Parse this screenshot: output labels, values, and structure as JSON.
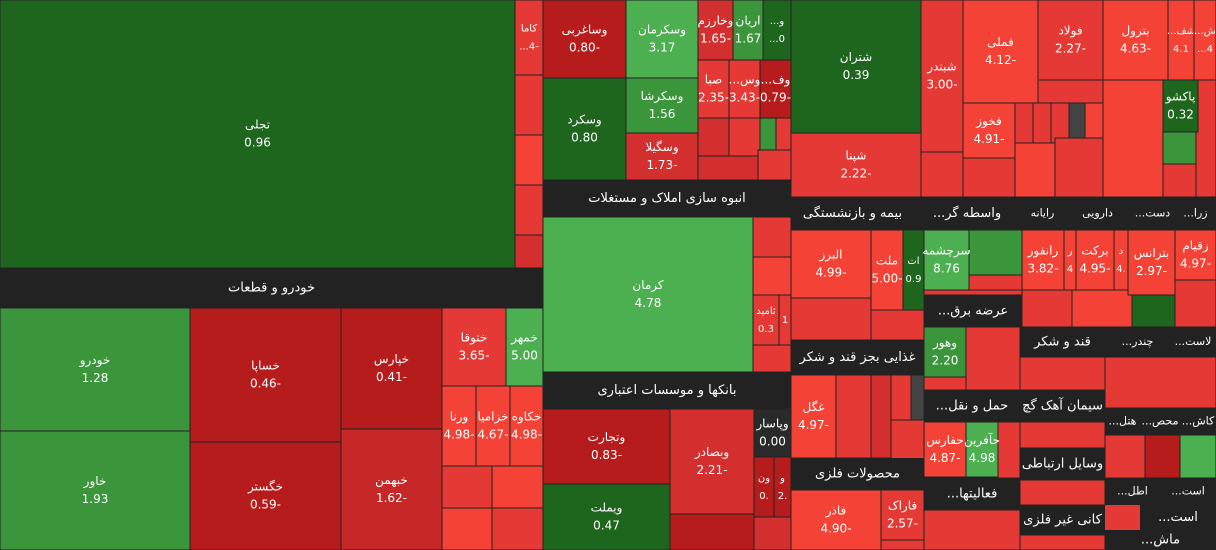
{
  "sectors": [
    {
      "name": "خودرو و قطعات"
    },
    {
      "name": "انبوه سازی املاک و مستغلات"
    },
    {
      "name": "بانکها و موسسات اعتباری"
    },
    {
      "name": "بیمه و بازنشستگی"
    },
    {
      "name": "واسطه گر..."
    },
    {
      "name": "رایانه"
    },
    {
      "name": "دارویی"
    },
    {
      "name": "دست..."
    },
    {
      "name": "زرا..."
    },
    {
      "name": "عرضه برق..."
    },
    {
      "name": "غذایی بجز قند و شکر"
    },
    {
      "name": "قند و شکر"
    },
    {
      "name": "چندر..."
    },
    {
      "name": "لاست..."
    },
    {
      "name": "حمل و نقل..."
    },
    {
      "name": "سیمان آهک گچ"
    },
    {
      "name": "کاش..."
    },
    {
      "name": "محص..."
    },
    {
      "name": "هتل..."
    },
    {
      "name": "محصولات فلزی"
    },
    {
      "name": "فعالیتها..."
    },
    {
      "name": "وسایل ارتباطی"
    },
    {
      "name": "اطل..."
    },
    {
      "name": "است..."
    },
    {
      "name": "کانی غیر فلزی"
    },
    {
      "name": "است..."
    },
    {
      "name": "ماش..."
    }
  ],
  "tiles": [
    {
      "symbol": "تجلی",
      "change": "0.96",
      "color": "#1e651e"
    },
    {
      "symbol": "کاما",
      "change": "-4...",
      "color": "#e53935"
    },
    {
      "symbol": "خودرو",
      "change": "1.28",
      "color": "#3b963b"
    },
    {
      "symbol": "خاور",
      "change": "1.93",
      "color": "#3b963b"
    },
    {
      "symbol": "خساپا",
      "change": "-0.46",
      "color": "#b71c1c"
    },
    {
      "symbol": "خگستر",
      "change": "-0.59",
      "color": "#b71c1c"
    },
    {
      "symbol": "خپارس",
      "change": "-0.41",
      "color": "#b71c1c"
    },
    {
      "symbol": "خبهمن",
      "change": "-1.62",
      "color": "#c62828"
    },
    {
      "symbol": "ختوقا",
      "change": "-3.65",
      "color": "#e53935"
    },
    {
      "symbol": "خمهر",
      "change": "5.00",
      "color": "#4caf50"
    },
    {
      "symbol": "ورنا",
      "change": "-4.98",
      "color": "#f44336"
    },
    {
      "symbol": "خزامیا",
      "change": "-4.67",
      "color": "#f44336"
    },
    {
      "symbol": "خکاوه",
      "change": "-4.98",
      "color": "#f44336"
    },
    {
      "symbol": "وساغربی",
      "change": "-0.80",
      "color": "#b71c1c"
    },
    {
      "symbol": "وسکرمان",
      "change": "3.17",
      "color": "#4caf50"
    },
    {
      "symbol": "وخارزم",
      "change": "-1.65",
      "color": "#d32f2f"
    },
    {
      "symbol": "اریان",
      "change": "1.67",
      "color": "#3b963b"
    },
    {
      "symbol": "و...",
      "change": "0...",
      "color": "#1e651e"
    },
    {
      "symbol": "وسکرد",
      "change": "0.80",
      "color": "#1e651e"
    },
    {
      "symbol": "وسکرشا",
      "change": "1.56",
      "color": "#3b963b"
    },
    {
      "symbol": "وسگیلا",
      "change": "-1.73",
      "color": "#d32f2f"
    },
    {
      "symbol": "صبا",
      "change": "-2.35",
      "color": "#e53935"
    },
    {
      "symbol": "وس...",
      "change": "-3.43",
      "color": "#e53935"
    },
    {
      "symbol": "وف...",
      "change": "-0.79",
      "color": "#b71c1c"
    },
    {
      "symbol": "شتران",
      "change": "0.39",
      "color": "#1e651e"
    },
    {
      "symbol": "شپنا",
      "change": "-2.22",
      "color": "#e53935"
    },
    {
      "symbol": "شبندر",
      "change": "-3.00",
      "color": "#e53935"
    },
    {
      "symbol": "فملی",
      "change": "-4.12",
      "color": "#f44336"
    },
    {
      "symbol": "فولاد",
      "change": "-2.27",
      "color": "#e53935"
    },
    {
      "symbol": "بترول",
      "change": "-4.63",
      "color": "#f44336"
    },
    {
      "symbol": "شف...",
      "change": "4.1",
      "color": "#f44336"
    },
    {
      "symbol": "ش...",
      "change": "4...",
      "color": "#f44336"
    },
    {
      "symbol": "پاکشو",
      "change": "0.32",
      "color": "#1e651e"
    },
    {
      "symbol": "فخوز",
      "change": "-4.91",
      "color": "#f44336"
    },
    {
      "symbol": "کرمان",
      "change": "4.78",
      "color": "#4caf50"
    },
    {
      "symbol": "ثامید",
      "change": "0.3",
      "color": "#e53935"
    },
    {
      "change": "1",
      "color": "#e53935"
    },
    {
      "symbol": "وتجارت",
      "change": "-0.83",
      "color": "#b71c1c"
    },
    {
      "symbol": "وبصادر",
      "change": "-2.21",
      "color": "#d32f2f"
    },
    {
      "symbol": "ویملت",
      "change": "0.47",
      "color": "#1e651e"
    },
    {
      "symbol": "وپاسار",
      "change": "0.00",
      "color": "#2a2a2a"
    },
    {
      "symbol": "ون",
      "change": ".0",
      "color": "#b71c1c"
    },
    {
      "symbol": "و",
      "change": ".2",
      "color": "#b71c1c"
    },
    {
      "symbol": "البرز",
      "change": "-4.99",
      "color": "#f44336"
    },
    {
      "symbol": "ملت",
      "change": "-5.00",
      "color": "#f44336"
    },
    {
      "symbol": "ات",
      "change": "0.9",
      "color": "#1e651e"
    },
    {
      "symbol": "سرچشمه",
      "change": "8.76",
      "color": "#4caf50"
    },
    {
      "symbol": "رانفور",
      "change": "-3.82",
      "color": "#f44336"
    },
    {
      "symbol": "ر",
      "change": "4",
      "color": "#f44336"
    },
    {
      "symbol": "برکت",
      "change": "-4.95",
      "color": "#f44336"
    },
    {
      "symbol": "د",
      "change": ".4",
      "color": "#f44336"
    },
    {
      "symbol": "بترانس",
      "change": "-2.97",
      "color": "#f44336"
    },
    {
      "symbol": "زقیام",
      "change": "-4.97",
      "color": "#f44336"
    },
    {
      "symbol": "غگل",
      "change": "-4.97",
      "color": "#f44336"
    },
    {
      "symbol": "وهور",
      "change": "2.20",
      "color": "#3b963b"
    },
    {
      "symbol": "حفارس",
      "change": "-4.87",
      "color": "#f44336"
    },
    {
      "symbol": "حآفرین",
      "change": "4.98",
      "color": "#4caf50"
    },
    {
      "symbol": "فاذر",
      "change": "-4.90",
      "color": "#f44336"
    },
    {
      "symbol": "فاراک",
      "change": "-2.57",
      "color": "#e53935"
    }
  ]
}
